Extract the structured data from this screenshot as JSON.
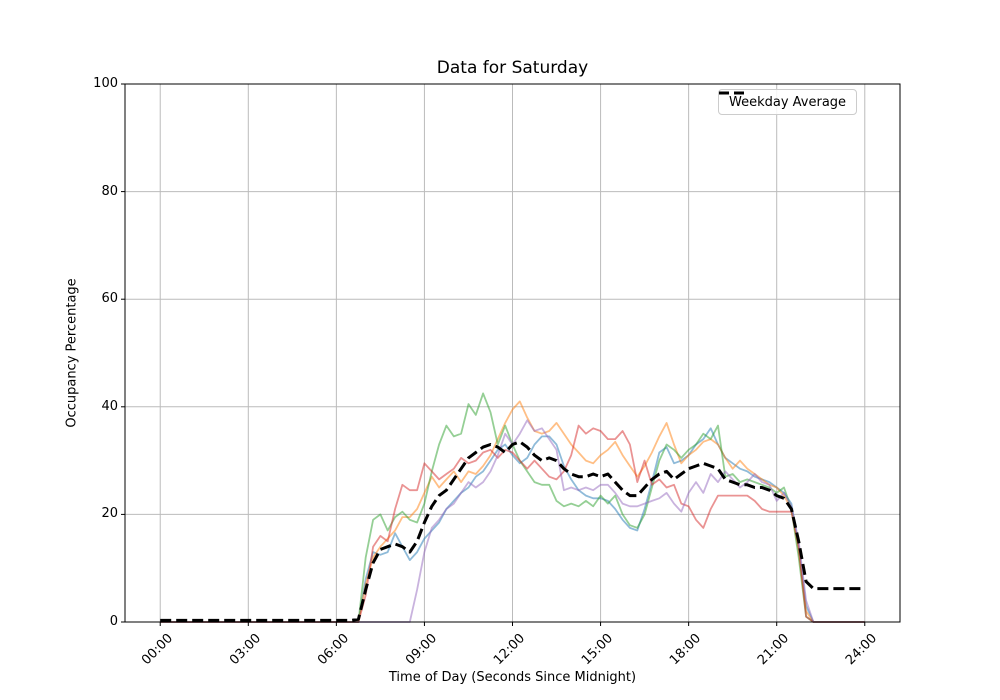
{
  "figure": {
    "title": "Data for Saturday",
    "xlabel": "Time of Day (Seconds Since Midnight)",
    "ylabel": "Occupancy Percentage",
    "legend_label": "Weekday Average"
  },
  "chart_data": {
    "type": "line",
    "title": "Data for Saturday",
    "xlabel": "Time of Day (Seconds Since Midnight)",
    "ylabel": "Occupancy Percentage",
    "grid": true,
    "grid_color": "#bbbbbb",
    "spine_color": "#000000",
    "legend_position": "upper right",
    "legend_entries": [
      "Weekday Average"
    ],
    "ylim": [
      0,
      100
    ],
    "xlim_hours": [
      -1.2,
      25.2
    ],
    "yticks": [
      0,
      20,
      40,
      60,
      80,
      100
    ],
    "xticks": {
      "hours": [
        0,
        3,
        6,
        9,
        12,
        15,
        18,
        21,
        24
      ],
      "labels": [
        "00:00",
        "03:00",
        "06:00",
        "09:00",
        "12:00",
        "15:00",
        "18:00",
        "21:00",
        "24:00"
      ]
    },
    "x_start_hours": 0,
    "x_step_hours": 0.25,
    "series": [
      {
        "name": "saturday-sample-blue",
        "color": "#1f77b4",
        "opacity": 0.5,
        "width": 1.8,
        "dash": null,
        "values": [
          0,
          0,
          0,
          0,
          0,
          0,
          0,
          0,
          0,
          0,
          0,
          0,
          0,
          0,
          0,
          0,
          0,
          0,
          0,
          0,
          0,
          0,
          0,
          0,
          0,
          0,
          0,
          0,
          8,
          13,
          12.5,
          13,
          16.5,
          14,
          11.5,
          13,
          15.5,
          17,
          18.5,
          21,
          22.5,
          24,
          25,
          27,
          28,
          30,
          32,
          33,
          31,
          29.5,
          30.5,
          33,
          34.5,
          34.5,
          33,
          29,
          26.5,
          24.5,
          23.5,
          23,
          23,
          22.5,
          21,
          19,
          17.5,
          17,
          21,
          26,
          31.5,
          32.5,
          29.5,
          30,
          31,
          33,
          34,
          36,
          33,
          30.5,
          29.5,
          28.5,
          28,
          27,
          26.5,
          26,
          25,
          24,
          22,
          14,
          3,
          0,
          0,
          0,
          0,
          0,
          0,
          0,
          0
        ]
      },
      {
        "name": "saturday-sample-orange",
        "color": "#ff7f0e",
        "opacity": 0.5,
        "width": 1.8,
        "dash": null,
        "values": [
          0,
          0,
          0,
          0,
          0,
          0,
          0,
          0,
          0,
          0,
          0,
          0,
          0,
          0,
          0,
          0,
          0,
          0,
          0,
          0,
          0,
          0,
          0,
          0,
          0,
          0,
          0,
          0,
          7,
          12,
          14,
          15.5,
          17,
          19.5,
          19.5,
          21,
          24,
          27,
          25,
          26.5,
          28,
          26,
          28,
          27.5,
          29,
          31,
          34,
          37,
          39.5,
          41,
          38,
          35.5,
          35,
          35.5,
          37,
          35,
          33,
          31.5,
          30,
          29.5,
          31,
          32,
          33.5,
          31,
          29,
          27,
          29,
          31.5,
          34.5,
          37,
          33,
          29.5,
          31,
          32,
          33.5,
          34,
          33,
          30.5,
          28.5,
          30,
          28.5,
          27.5,
          26.5,
          25.5,
          25,
          23.5,
          21,
          13,
          2,
          0,
          0,
          0,
          0,
          0,
          0,
          0,
          0
        ]
      },
      {
        "name": "saturday-sample-green",
        "color": "#2ca02c",
        "opacity": 0.5,
        "width": 1.8,
        "dash": null,
        "values": [
          0,
          0,
          0,
          0,
          0,
          0,
          0,
          0,
          0,
          0,
          0,
          0,
          0,
          0,
          0,
          0,
          0,
          0,
          0,
          0,
          0,
          0,
          0,
          0,
          0,
          0,
          0,
          0,
          12,
          19,
          20,
          17,
          19.5,
          20.5,
          19,
          18.5,
          22,
          28,
          33,
          36.5,
          34.5,
          35,
          40.5,
          38.5,
          42.5,
          39,
          33,
          36.5,
          33,
          30,
          28,
          26,
          25.5,
          25.5,
          22.5,
          21.5,
          22,
          21.5,
          22.5,
          21.5,
          23.5,
          22,
          23.5,
          20,
          18,
          17.5,
          20,
          25,
          30,
          33,
          32,
          30.5,
          32,
          33,
          35,
          34,
          36.5,
          27,
          27.5,
          26,
          26.5,
          26,
          25.5,
          25,
          24,
          25,
          21,
          12,
          1,
          0,
          0,
          0,
          0,
          0,
          0,
          0,
          0
        ]
      },
      {
        "name": "saturday-sample-red",
        "color": "#d62728",
        "opacity": 0.5,
        "width": 1.8,
        "dash": null,
        "values": [
          0,
          0,
          0,
          0,
          0,
          0,
          0,
          0,
          0,
          0,
          0,
          0,
          0,
          0,
          0,
          0,
          0,
          0,
          0,
          0,
          0,
          0,
          0,
          0,
          0,
          0,
          0,
          0,
          5,
          14,
          16,
          15,
          21,
          25.5,
          24.5,
          24.5,
          29.5,
          28,
          26.5,
          27.5,
          28.5,
          30.5,
          29.5,
          30,
          31.5,
          32,
          30.5,
          32,
          31.5,
          30,
          28.5,
          30,
          28.5,
          27,
          26.5,
          28,
          31,
          36.5,
          35,
          36,
          35.5,
          34,
          34,
          35.5,
          33,
          26,
          30,
          25.5,
          26.5,
          25,
          25.5,
          22,
          21.5,
          19,
          17.5,
          21,
          23.5,
          23.5,
          23.5,
          23.5,
          23.5,
          22.5,
          21,
          20.5,
          20.5,
          20.5,
          20.5,
          14,
          1,
          0,
          0,
          0,
          0,
          0,
          0,
          0,
          0
        ]
      },
      {
        "name": "saturday-sample-purple",
        "color": "#9467bd",
        "opacity": 0.5,
        "width": 1.8,
        "dash": null,
        "values": [
          0,
          0,
          0,
          0,
          0,
          0,
          0,
          0,
          0,
          0,
          0,
          0,
          0,
          0,
          0,
          0,
          0,
          0,
          0,
          0,
          0,
          0,
          0,
          0,
          0,
          0,
          0,
          0,
          0,
          0,
          0,
          0,
          0,
          0,
          0,
          6,
          13,
          17.5,
          19,
          21,
          22,
          24,
          26,
          25,
          26,
          28,
          31,
          35,
          33,
          35,
          37.5,
          35.5,
          36,
          34,
          32,
          24.5,
          25,
          24.5,
          25,
          24.5,
          25.5,
          25.5,
          24,
          22,
          21.5,
          21.5,
          22,
          22.5,
          23,
          24,
          22,
          20.5,
          24,
          26,
          24,
          27.5,
          26,
          28,
          26.5,
          25,
          26,
          27.5,
          26,
          25.5,
          22.5,
          24,
          21.5,
          15,
          4,
          0,
          0,
          0,
          0,
          0,
          0,
          0,
          0
        ]
      },
      {
        "name": "weekday-average",
        "color": "#000000",
        "opacity": 1,
        "width": 3,
        "dash": [
          11,
          5
        ],
        "values": [
          0.3,
          0.3,
          0.3,
          0.3,
          0.3,
          0.3,
          0.3,
          0.3,
          0.3,
          0.3,
          0.3,
          0.3,
          0.3,
          0.3,
          0.3,
          0.3,
          0.3,
          0.3,
          0.3,
          0.3,
          0.3,
          0.3,
          0.3,
          0.3,
          0.3,
          0.3,
          0.3,
          0.5,
          6,
          11,
          13.5,
          14,
          14.5,
          14,
          13,
          15,
          18.5,
          21.5,
          23.5,
          24.5,
          26.5,
          28.5,
          30.5,
          31.5,
          32.5,
          33,
          32.5,
          31.5,
          33,
          33.5,
          32.5,
          31,
          30,
          30.5,
          30,
          28.5,
          27.5,
          27,
          27,
          27.5,
          27,
          27.5,
          26,
          24.5,
          23.5,
          23.5,
          25,
          26.5,
          27.5,
          28,
          26.5,
          27.5,
          28.5,
          29,
          29.5,
          29,
          28.5,
          26.5,
          26,
          25.5,
          25.5,
          25,
          25,
          24.5,
          23.5,
          23,
          21,
          15,
          7.5,
          6.2,
          6.2,
          6.2,
          6.2,
          6.2,
          6.2,
          6.2,
          6.2
        ]
      }
    ]
  }
}
